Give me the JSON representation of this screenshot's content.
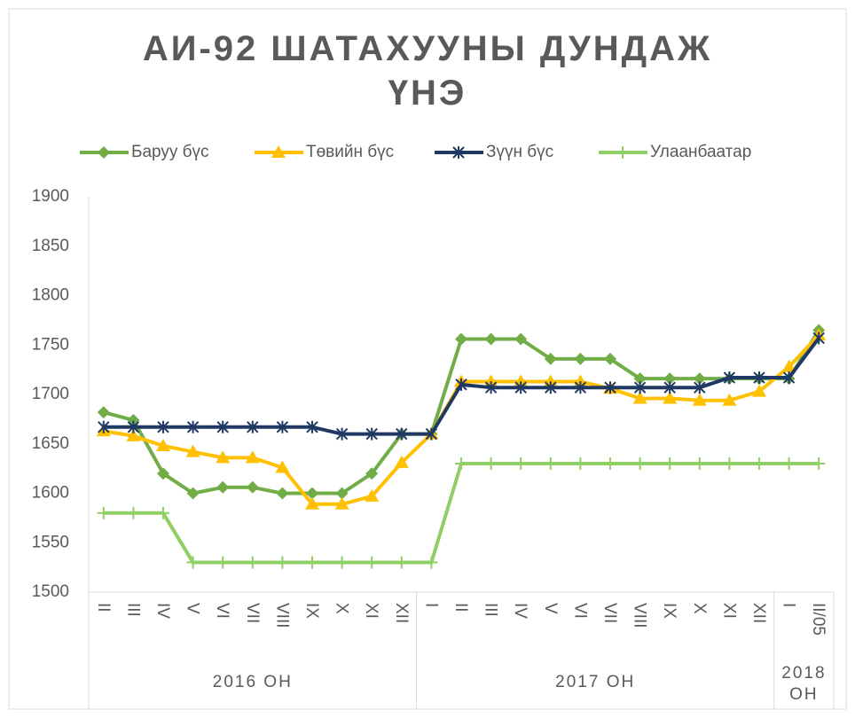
{
  "chart_data": {
    "type": "line",
    "title": "АИ-92 ШАТАХУУНЫ ДУНДАЖ ҮНЭ",
    "category_groups": [
      {
        "label": "2016 ОН",
        "categories": [
          "II",
          "III",
          "IV",
          "V",
          "VI",
          "VII",
          "VIII",
          "IX",
          "X",
          "XI",
          "XII"
        ]
      },
      {
        "label": "2017 ОН",
        "categories": [
          "I",
          "II",
          "III",
          "IV",
          "V",
          "VI",
          "VII",
          "VIII",
          "IX",
          "X",
          "XI",
          "XII"
        ]
      },
      {
        "label": "2018 ОН",
        "categories": [
          "I",
          "II/05"
        ]
      }
    ],
    "series": [
      {
        "name": "Баруу бүс",
        "color": "#70ad47",
        "marker": "diamond",
        "values": [
          1682,
          1674,
          1620,
          1600,
          1606,
          1606,
          1600,
          1600,
          1600,
          1620,
          1660,
          1660,
          1756,
          1756,
          1756,
          1736,
          1736,
          1736,
          1716,
          1716,
          1716,
          1716,
          1716,
          1716,
          1765
        ]
      },
      {
        "name": "Төвийн бүс",
        "color": "#ffc000",
        "marker": "triangle",
        "values": [
          1663,
          1658,
          1648,
          1642,
          1636,
          1636,
          1626,
          1589,
          1589,
          1597,
          1631,
          1660,
          1713,
          1713,
          1713,
          1713,
          1713,
          1706,
          1696,
          1696,
          1694,
          1694,
          1703,
          1728,
          1760
        ]
      },
      {
        "name": "Зүүн бүс",
        "color": "#1f3864",
        "marker": "star",
        "values": [
          1667,
          1667,
          1667,
          1667,
          1667,
          1667,
          1667,
          1667,
          1660,
          1660,
          1660,
          1660,
          1710,
          1707,
          1707,
          1707,
          1707,
          1707,
          1707,
          1707,
          1707,
          1717,
          1717,
          1717,
          1757
        ]
      },
      {
        "name": "Улаанбаатар",
        "color": "#8fcf65",
        "marker": "plus",
        "values": [
          1580,
          1580,
          1580,
          1530,
          1530,
          1530,
          1530,
          1530,
          1530,
          1530,
          1530,
          1530,
          1630,
          1630,
          1630,
          1630,
          1630,
          1630,
          1630,
          1630,
          1630,
          1630,
          1630,
          1630,
          1630
        ]
      }
    ],
    "ylim": [
      1500,
      1900
    ],
    "yticks": [
      1500,
      1550,
      1600,
      1650,
      1700,
      1750,
      1800,
      1850,
      1900
    ],
    "grid": false,
    "legend": "top"
  }
}
